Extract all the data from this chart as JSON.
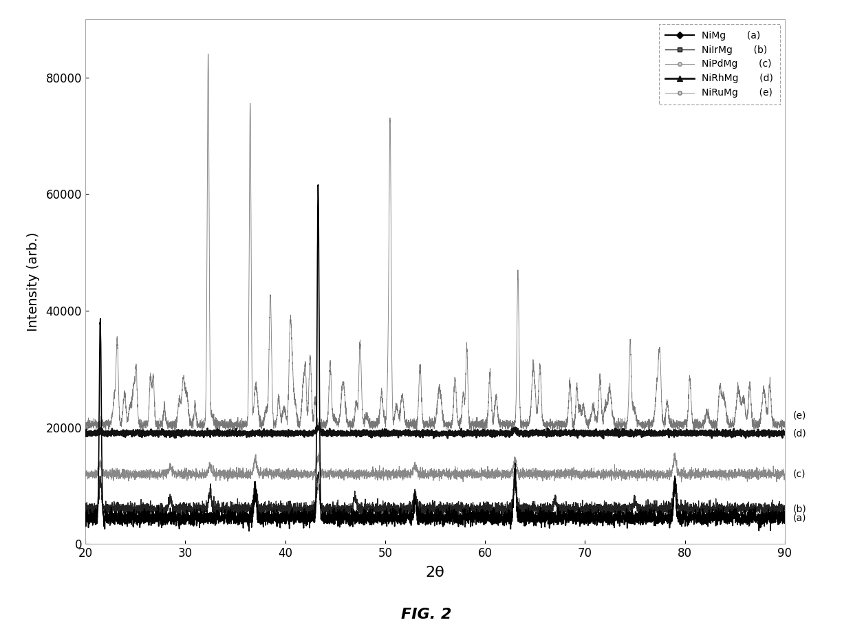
{
  "xlabel": "2θ",
  "ylabel": "Intensity (arb.)",
  "fig_caption": "FIG. 2",
  "xlim": [
    20,
    90
  ],
  "ylim": [
    0,
    90000
  ],
  "yticks": [
    0,
    20000,
    40000,
    60000,
    80000
  ],
  "xticks": [
    20,
    30,
    40,
    50,
    60,
    70,
    80,
    90
  ],
  "series": [
    {
      "label": "NiMg",
      "code": "(a)",
      "color": "#000000",
      "lw": 1.2,
      "zorder": 10
    },
    {
      "label": "NiIrMg",
      "code": "(b)",
      "color": "#222222",
      "lw": 0.9,
      "zorder": 9
    },
    {
      "label": "NiPdMg",
      "code": "(c)",
      "color": "#888888",
      "lw": 0.7,
      "zorder": 8
    },
    {
      "label": "NiRhMg",
      "code": "(d)",
      "color": "#111111",
      "lw": 1.8,
      "zorder": 11
    },
    {
      "label": "NiRuMg",
      "code": "(e)",
      "color": "#777777",
      "lw": 0.6,
      "zorder": 7
    }
  ],
  "background_color": "#ffffff",
  "label_fontsize": 14,
  "tick_fontsize": 12,
  "caption_fontsize": 16
}
